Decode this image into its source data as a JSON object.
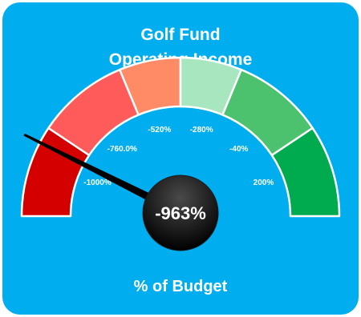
{
  "chart_data": {
    "type": "gauge",
    "title_line1": "Golf Fund",
    "title_line2": "Operating Income",
    "footer_label": "% of Budget",
    "value": -963,
    "value_label": "-963%",
    "range": [
      -1200,
      400
    ],
    "bands": [
      {
        "from": -1200,
        "to": -900,
        "color": "#d40000"
      },
      {
        "from": -900,
        "to": -600,
        "color": "#ff5b5b"
      },
      {
        "from": -600,
        "to": -400,
        "color": "#ff8a66"
      },
      {
        "from": -400,
        "to": -200,
        "color": "#a8e6bf"
      },
      {
        "from": -200,
        "to": 100,
        "color": "#4cc26f"
      },
      {
        "from": 100,
        "to": 400,
        "color": "#00aa4f"
      }
    ],
    "tick_labels": [
      {
        "value": -1000,
        "label": "-1000%"
      },
      {
        "value": -760,
        "label": "-760.0%"
      },
      {
        "value": -520,
        "label": "-520%"
      },
      {
        "value": -280,
        "label": "-280%"
      },
      {
        "value": -40,
        "label": "-40%"
      },
      {
        "value": 200,
        "label": "200%"
      }
    ],
    "colors": {
      "background": "#00aeef",
      "needle": "#000000",
      "band_border": "#ffffff"
    }
  }
}
